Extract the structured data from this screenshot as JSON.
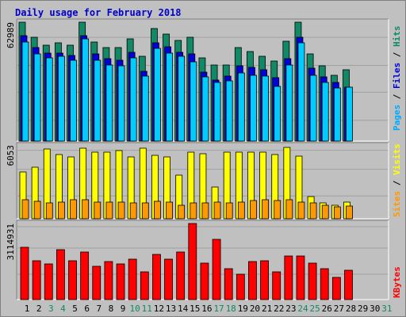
{
  "title": "Daily usage for February 2018",
  "colors": {
    "background": "#c0c0c0",
    "title": "#0000cc",
    "hits": "#118866",
    "files": "#0000dd",
    "pages": "#00ccff",
    "visits": "#ffff00",
    "sites": "#ff9900",
    "kbytes": "#ff0000",
    "weekend_label": "#118866",
    "weekday_label": "#000000"
  },
  "legend": {
    "top": [
      {
        "text": "Pages",
        "color": "#00aaff"
      },
      {
        "text": " / ",
        "color": "#000000"
      },
      {
        "text": "Files",
        "color": "#0000dd"
      },
      {
        "text": " / ",
        "color": "#000000"
      },
      {
        "text": "Hits",
        "color": "#118866"
      }
    ],
    "middle": [
      {
        "text": "Sites",
        "color": "#ff9900"
      },
      {
        "text": " / ",
        "color": "#000000"
      },
      {
        "text": "Visits",
        "color": "#ffff00"
      }
    ],
    "bottom": [
      {
        "text": "KBytes",
        "color": "#ff0000"
      }
    ]
  },
  "chart_data": [
    {
      "type": "bar",
      "title": "Daily usage for February 2018",
      "panel": "hits-files-pages",
      "max_label": "62989",
      "ylim": [
        0,
        62989
      ],
      "categories": [
        "1",
        "2",
        "3",
        "4",
        "5",
        "6",
        "7",
        "8",
        "9",
        "10",
        "11",
        "12",
        "13",
        "14",
        "15",
        "16",
        "17",
        "18",
        "19",
        "20",
        "21",
        "22",
        "23",
        "24",
        "25",
        "26",
        "27",
        "28",
        "29",
        "30",
        "31"
      ],
      "weekend_days": [
        "3",
        "4",
        "10",
        "11",
        "17",
        "18",
        "24",
        "25",
        "31"
      ],
      "series": [
        {
          "name": "Hits",
          "values": [
            62989,
            55000,
            51000,
            52000,
            51000,
            63000,
            52500,
            49500,
            49500,
            54000,
            45000,
            59500,
            56500,
            53500,
            55000,
            44000,
            40500,
            40500,
            49500,
            47500,
            45000,
            42500,
            53000,
            63000,
            46000,
            40000,
            35000,
            38000,
            0,
            0,
            0
          ]
        },
        {
          "name": "Files",
          "values": [
            56000,
            49500,
            46500,
            46500,
            45500,
            56000,
            46000,
            43500,
            43000,
            47000,
            37000,
            52000,
            50000,
            47000,
            46000,
            36500,
            32500,
            34500,
            40000,
            39000,
            38000,
            33500,
            43500,
            55000,
            38500,
            34000,
            31000,
            28500,
            0,
            0,
            0
          ]
        },
        {
          "name": "Pages",
          "values": [
            52500,
            46000,
            44000,
            45000,
            43000,
            54000,
            43000,
            40500,
            40000,
            44000,
            34500,
            49000,
            46500,
            45000,
            42000,
            34000,
            31000,
            32000,
            36000,
            35000,
            34500,
            29000,
            40500,
            52000,
            35000,
            31000,
            28000,
            28500,
            0,
            0,
            0
          ]
        }
      ]
    },
    {
      "type": "bar",
      "panel": "visits-sites",
      "max_label": "6053",
      "ylim": [
        0,
        6053
      ],
      "categories": [
        "1",
        "2",
        "3",
        "4",
        "5",
        "6",
        "7",
        "8",
        "9",
        "10",
        "11",
        "12",
        "13",
        "14",
        "15",
        "16",
        "17",
        "18",
        "19",
        "20",
        "21",
        "22",
        "23",
        "24",
        "25",
        "26",
        "27",
        "28",
        "29",
        "30",
        "31"
      ],
      "series": [
        {
          "name": "Visits",
          "values": [
            3850,
            4250,
            5800,
            5300,
            5150,
            5850,
            5550,
            5550,
            5650,
            5100,
            5850,
            5250,
            5150,
            3650,
            5500,
            5400,
            2650,
            5500,
            5550,
            5550,
            5550,
            5350,
            5900,
            5200,
            1850,
            1300,
            1100,
            1350,
            0,
            0,
            0
          ]
        },
        {
          "name": "Sites",
          "values": [
            1600,
            1450,
            1300,
            1350,
            1550,
            1550,
            1400,
            1350,
            1400,
            1300,
            1300,
            1450,
            1400,
            1150,
            1300,
            1300,
            1350,
            1300,
            1400,
            1500,
            1600,
            1500,
            1600,
            1400,
            1300,
            1100,
            1000,
            1050,
            0,
            0,
            0
          ]
        }
      ]
    },
    {
      "type": "bar",
      "panel": "kbytes",
      "max_label": "3114931",
      "ylim": [
        0,
        3114931
      ],
      "categories": [
        "1",
        "2",
        "3",
        "4",
        "5",
        "6",
        "7",
        "8",
        "9",
        "10",
        "11",
        "12",
        "13",
        "14",
        "15",
        "16",
        "17",
        "18",
        "19",
        "20",
        "21",
        "22",
        "23",
        "24",
        "25",
        "26",
        "27",
        "28",
        "29",
        "30",
        "31"
      ],
      "series": [
        {
          "name": "KBytes",
          "values": [
            2150000,
            1600000,
            1450000,
            2050000,
            1600000,
            1950000,
            1350000,
            1550000,
            1450000,
            1650000,
            1150000,
            1850000,
            1650000,
            1950000,
            3114931,
            1500000,
            2450000,
            1250000,
            1050000,
            1550000,
            1600000,
            1150000,
            1800000,
            1800000,
            1500000,
            1250000,
            900000,
            1200000,
            0,
            0,
            0
          ]
        }
      ]
    }
  ]
}
